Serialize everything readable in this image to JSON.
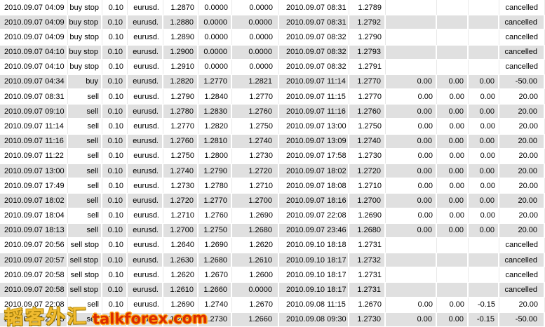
{
  "table": {
    "description": "account-history-trade-list",
    "columns": [
      {
        "key": "open-time"
      },
      {
        "key": "order-type"
      },
      {
        "key": "size"
      },
      {
        "key": "symbol"
      },
      {
        "key": "open-price"
      },
      {
        "key": "stop-loss"
      },
      {
        "key": "take-profit"
      },
      {
        "key": "close-time"
      },
      {
        "key": "close-price"
      },
      {
        "key": "commission"
      },
      {
        "key": "taxes"
      },
      {
        "key": "swap"
      },
      {
        "key": "profit"
      }
    ],
    "rows": [
      [
        "2010.09.07 04:09",
        "buy stop",
        "0.10",
        "eurusd.",
        "1.2870",
        "0.0000",
        "0.0000",
        "2010.09.07 08:31",
        "1.2789",
        "",
        "",
        "",
        "cancelled"
      ],
      [
        "2010.09.07 04:09",
        "buy stop",
        "0.10",
        "eurusd.",
        "1.2880",
        "0.0000",
        "0.0000",
        "2010.09.07 08:31",
        "1.2792",
        "",
        "",
        "",
        "cancelled"
      ],
      [
        "2010.09.07 04:09",
        "buy stop",
        "0.10",
        "eurusd.",
        "1.2890",
        "0.0000",
        "0.0000",
        "2010.09.07 08:32",
        "1.2790",
        "",
        "",
        "",
        "cancelled"
      ],
      [
        "2010.09.07 04:10",
        "buy stop",
        "0.10",
        "eurusd.",
        "1.2900",
        "0.0000",
        "0.0000",
        "2010.09.07 08:32",
        "1.2793",
        "",
        "",
        "",
        "cancelled"
      ],
      [
        "2010.09.07 04:10",
        "buy stop",
        "0.10",
        "eurusd.",
        "1.2910",
        "0.0000",
        "0.0000",
        "2010.09.07 08:32",
        "1.2791",
        "",
        "",
        "",
        "cancelled"
      ],
      [
        "2010.09.07 04:34",
        "buy",
        "0.10",
        "eurusd.",
        "1.2820",
        "1.2770",
        "1.2821",
        "2010.09.07 11:14",
        "1.2770",
        "0.00",
        "0.00",
        "0.00",
        "-50.00"
      ],
      [
        "2010.09.07 08:31",
        "sell",
        "0.10",
        "eurusd.",
        "1.2790",
        "1.2840",
        "1.2770",
        "2010.09.07 11:15",
        "1.2770",
        "0.00",
        "0.00",
        "0.00",
        "20.00"
      ],
      [
        "2010.09.07 09:10",
        "sell",
        "0.10",
        "eurusd.",
        "1.2780",
        "1.2830",
        "1.2760",
        "2010.09.07 11:16",
        "1.2760",
        "0.00",
        "0.00",
        "0.00",
        "20.00"
      ],
      [
        "2010.09.07 11:14",
        "sell",
        "0.10",
        "eurusd.",
        "1.2770",
        "1.2820",
        "1.2750",
        "2010.09.07 13:00",
        "1.2750",
        "0.00",
        "0.00",
        "0.00",
        "20.00"
      ],
      [
        "2010.09.07 11:16",
        "sell",
        "0.10",
        "eurusd.",
        "1.2760",
        "1.2810",
        "1.2740",
        "2010.09.07 13:09",
        "1.2740",
        "0.00",
        "0.00",
        "0.00",
        "20.00"
      ],
      [
        "2010.09.07 11:22",
        "sell",
        "0.10",
        "eurusd.",
        "1.2750",
        "1.2800",
        "1.2730",
        "2010.09.07 17:58",
        "1.2730",
        "0.00",
        "0.00",
        "0.00",
        "20.00"
      ],
      [
        "2010.09.07 13:00",
        "sell",
        "0.10",
        "eurusd.",
        "1.2740",
        "1.2790",
        "1.2720",
        "2010.09.07 18:02",
        "1.2720",
        "0.00",
        "0.00",
        "0.00",
        "20.00"
      ],
      [
        "2010.09.07 17:49",
        "sell",
        "0.10",
        "eurusd.",
        "1.2730",
        "1.2780",
        "1.2710",
        "2010.09.07 18:08",
        "1.2710",
        "0.00",
        "0.00",
        "0.00",
        "20.00"
      ],
      [
        "2010.09.07 18:02",
        "sell",
        "0.10",
        "eurusd.",
        "1.2720",
        "1.2770",
        "1.2700",
        "2010.09.07 18:16",
        "1.2700",
        "0.00",
        "0.00",
        "0.00",
        "20.00"
      ],
      [
        "2010.09.07 18:04",
        "sell",
        "0.10",
        "eurusd.",
        "1.2710",
        "1.2760",
        "1.2690",
        "2010.09.07 22:08",
        "1.2690",
        "0.00",
        "0.00",
        "0.00",
        "20.00"
      ],
      [
        "2010.09.07 18:13",
        "sell",
        "0.10",
        "eurusd.",
        "1.2700",
        "1.2750",
        "1.2680",
        "2010.09.07 23:46",
        "1.2680",
        "0.00",
        "0.00",
        "0.00",
        "20.00"
      ],
      [
        "2010.09.07 20:56",
        "sell stop",
        "0.10",
        "eurusd.",
        "1.2640",
        "1.2690",
        "1.2620",
        "2010.09.10 18:18",
        "1.2731",
        "",
        "",
        "",
        "cancelled"
      ],
      [
        "2010.09.07 20:57",
        "sell stop",
        "0.10",
        "eurusd.",
        "1.2630",
        "1.2680",
        "1.2610",
        "2010.09.10 18:17",
        "1.2732",
        "",
        "",
        "",
        "cancelled"
      ],
      [
        "2010.09.07 20:58",
        "sell stop",
        "0.10",
        "eurusd.",
        "1.2620",
        "1.2670",
        "1.2600",
        "2010.09.10 18:17",
        "1.2731",
        "",
        "",
        "",
        "cancelled"
      ],
      [
        "2010.09.07 20:58",
        "sell stop",
        "0.10",
        "eurusd.",
        "1.2610",
        "1.2660",
        "0.0000",
        "2010.09.10 18:17",
        "1.2731",
        "",
        "",
        "",
        "cancelled"
      ],
      [
        "2010.09.07 22:08",
        "sell",
        "0.10",
        "eurusd.",
        "1.2690",
        "1.2740",
        "1.2670",
        "2010.09.08 11:15",
        "1.2670",
        "0.00",
        "0.00",
        "-0.15",
        "20.00"
      ],
      [
        "2010.09.07 22:45",
        "sell",
        "0.10",
        "eurusd.",
        "1.2680",
        "1.2730",
        "1.2660",
        "2010.09.08 09:30",
        "1.2730",
        "0.00",
        "0.00",
        "-0.15",
        "-50.00"
      ]
    ]
  },
  "watermark": {
    "cn": "韬客外汇",
    "en": "talkforex.com"
  },
  "colors": {
    "row_bg": "#ffffff",
    "row_alt_bg": "#e0e0e0",
    "text": "#000000",
    "watermark_cn": "#f0bb30",
    "watermark_en": "#db2b00",
    "watermark_en_outline": "#ffa514"
  }
}
